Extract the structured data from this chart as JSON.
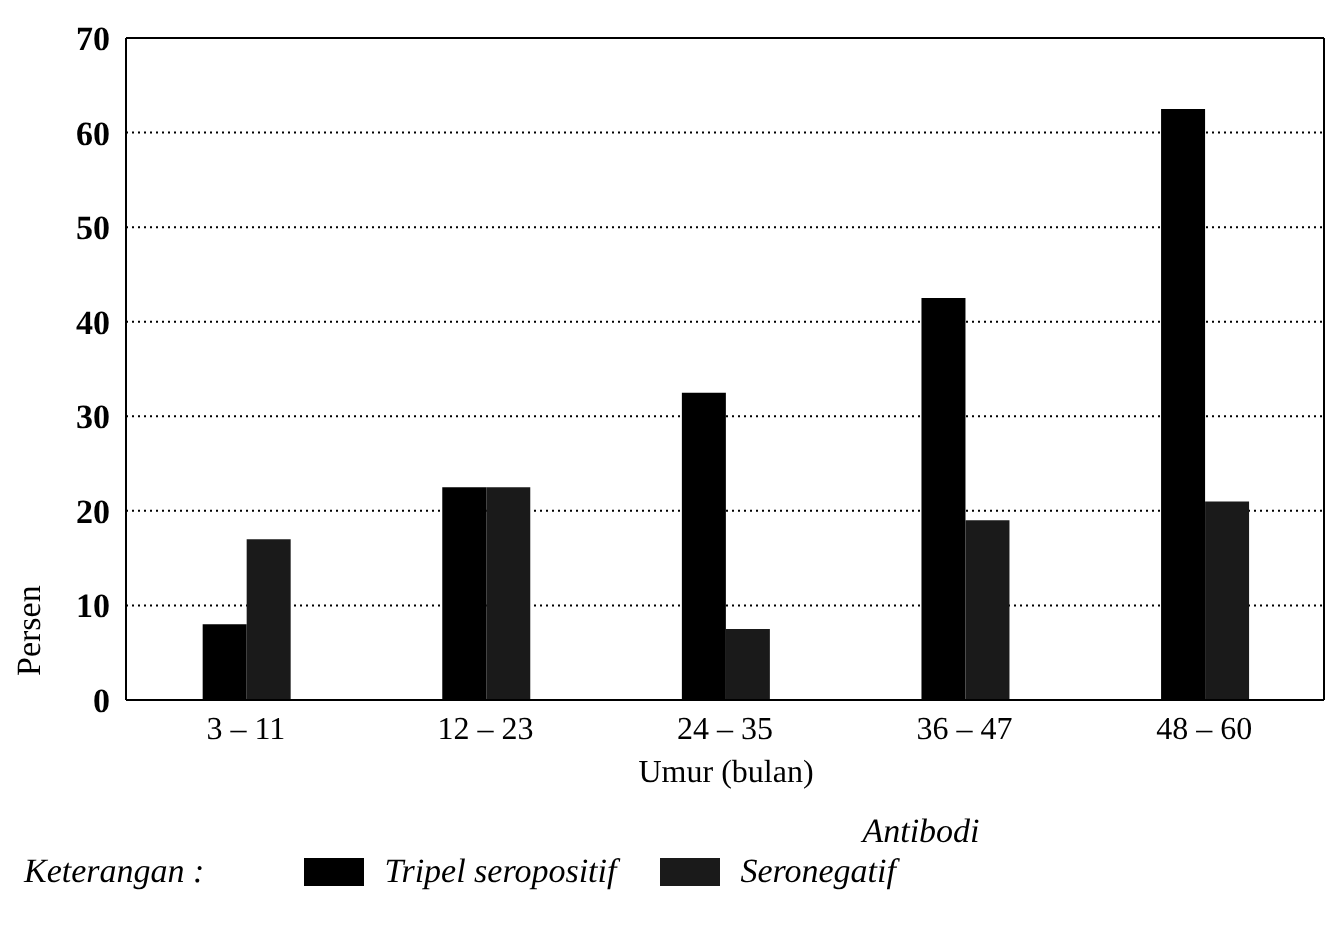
{
  "chart_data": {
    "type": "bar",
    "xlabel": "Umur (bulan)",
    "ylabel": "Persen",
    "legend_title": "Antibodi",
    "categories": [
      "3 – 11",
      "12 – 23",
      "24 – 35",
      "36 – 47",
      "48 – 60"
    ],
    "series": [
      {
        "name": "Tripel seropositif",
        "color": "#000000",
        "values": [
          8,
          22.5,
          32.5,
          42.5,
          62.5
        ]
      },
      {
        "name": "Seronegatif",
        "color": "#1a1a1a",
        "values": [
          17,
          22.5,
          7.5,
          19,
          21
        ]
      }
    ],
    "ylim": [
      0,
      70
    ],
    "yticks": [
      0,
      10,
      20,
      30,
      40,
      50,
      60,
      70
    ],
    "grid": "y",
    "legend": "bottom",
    "annotations": [
      "Keterangan :"
    ]
  }
}
